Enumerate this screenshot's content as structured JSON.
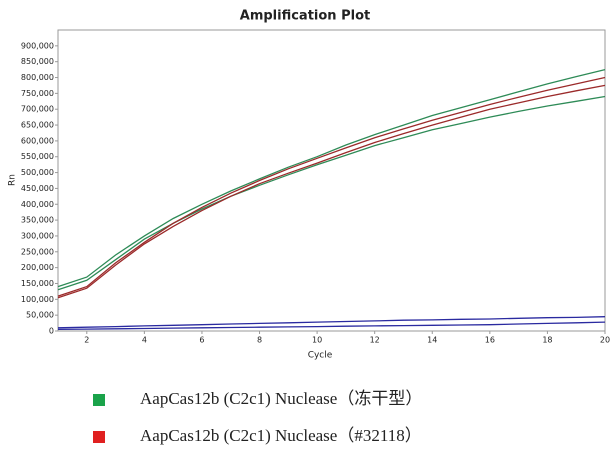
{
  "chart_data": {
    "type": "line",
    "title": "Amplification Plot",
    "x_label": "Cycle",
    "y_label": "Rn",
    "x": [
      1,
      2,
      3,
      4,
      5,
      6,
      7,
      8,
      9,
      10,
      11,
      12,
      13,
      14,
      15,
      16,
      17,
      18,
      19,
      20
    ],
    "xlim": [
      1,
      20
    ],
    "xticks": [
      2,
      4,
      6,
      8,
      10,
      12,
      14,
      16,
      18,
      20
    ],
    "ylim": [
      0,
      950000
    ],
    "yticks": [
      {
        "value": 0,
        "label": "0"
      },
      {
        "value": 50000,
        "label": "50,000"
      },
      {
        "value": 100000,
        "label": "100,000"
      },
      {
        "value": 150000,
        "label": "150,000"
      },
      {
        "value": 200000,
        "label": "200,000"
      },
      {
        "value": 250000,
        "label": "250,000"
      },
      {
        "value": 300000,
        "label": "300,000"
      },
      {
        "value": 350000,
        "label": "350,000"
      },
      {
        "value": 400000,
        "label": "400,000"
      },
      {
        "value": 450000,
        "label": "450,000"
      },
      {
        "value": 500000,
        "label": "500,000"
      },
      {
        "value": 550000,
        "label": "550,000"
      },
      {
        "value": 600000,
        "label": "600,000"
      },
      {
        "value": 650000,
        "label": "650,000"
      },
      {
        "value": 700000,
        "label": "700,000"
      },
      {
        "value": 750000,
        "label": "750,000"
      },
      {
        "value": 800000,
        "label": "800,000"
      },
      {
        "value": 850000,
        "label": "850,000"
      },
      {
        "value": 900000,
        "label": "900,000"
      }
    ],
    "grid": false,
    "series": [
      {
        "name": "AapCas12b (C2c1) Nuclease（冻干型）",
        "color": "#1aa34a",
        "line_color": "#2e8b57",
        "lines": [
          [
            140000,
            170000,
            240000,
            300000,
            355000,
            400000,
            442000,
            480000,
            517000,
            550000,
            587000,
            620000,
            650000,
            680000,
            705000,
            730000,
            755000,
            780000,
            803000,
            825000
          ],
          [
            130000,
            160000,
            225000,
            290000,
            340000,
            385000,
            425000,
            460000,
            493000,
            525000,
            555000,
            585000,
            610000,
            635000,
            655000,
            675000,
            693000,
            710000,
            725000,
            740000
          ]
        ]
      },
      {
        "name": "AapCas12b (C2c1) Nuclease（#32118）",
        "color": "#e02020",
        "line_color": "#9b2a2a",
        "lines": [
          [
            110000,
            140000,
            215000,
            280000,
            340000,
            390000,
            435000,
            475000,
            512000,
            545000,
            578000,
            610000,
            638000,
            665000,
            690000,
            715000,
            738000,
            760000,
            780000,
            800000
          ],
          [
            105000,
            135000,
            208000,
            275000,
            330000,
            380000,
            425000,
            465000,
            498000,
            530000,
            563000,
            595000,
            623000,
            650000,
            675000,
            700000,
            720000,
            740000,
            758000,
            775000
          ]
        ]
      },
      {
        "color": "#2a2aa0",
        "line_color": "#2a2aa0",
        "lines": [
          [
            10000,
            12000,
            14000,
            16000,
            18000,
            20000,
            22000,
            24000,
            26000,
            28000,
            30000,
            32000,
            34000,
            35000,
            37000,
            38000,
            40000,
            42000,
            43000,
            45000
          ],
          [
            5000,
            6000,
            7000,
            8000,
            9000,
            10000,
            11000,
            12000,
            13000,
            14000,
            15000,
            16000,
            17000,
            18000,
            19000,
            20000,
            22000,
            24000,
            26000,
            28000
          ]
        ]
      }
    ]
  }
}
